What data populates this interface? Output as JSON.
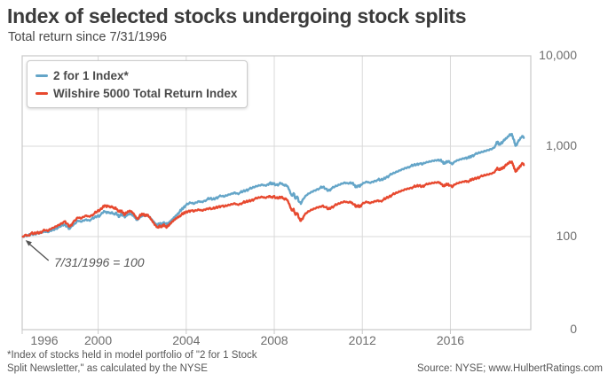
{
  "header": {
    "title": "Index of selected stocks undergoing stock splits",
    "subtitle": "Total return since 7/31/1996"
  },
  "footnote": {
    "line1": "*Index of stocks held in model portfolio of \"2 for 1 Stock",
    "line2": "Split Newsletter,\" as calculated by the NYSE"
  },
  "source": {
    "text": "Source: NYSE; www.HulbertRatings.com"
  },
  "chart_data": {
    "type": "line",
    "title": "Index of selected stocks undergoing stock splits",
    "subtitle": "Total return since 7/31/1996",
    "y_scale": "log",
    "grid": true,
    "legend_position": "top-left",
    "x_domain": [
      1996.55,
      2019.65
    ],
    "xlabel": "",
    "ylabel": "",
    "y_ticks": [
      {
        "label": "10,000",
        "value": 10000
      },
      {
        "label": "1,000",
        "value": 1000
      },
      {
        "label": "100",
        "value": 100
      },
      {
        "label": "0",
        "value": 0
      }
    ],
    "x_ticks": [
      {
        "label": "1996",
        "year": 1996
      },
      {
        "label": "2000",
        "year": 2000
      },
      {
        "label": "2004",
        "year": 2004
      },
      {
        "label": "2008",
        "year": 2008
      },
      {
        "label": "2012",
        "year": 2012
      },
      {
        "label": "2016",
        "year": 2016
      }
    ],
    "annotation": {
      "text": "7/31/1996 = 100",
      "x": 1996.58,
      "y": 100
    },
    "x": [
      1996.58,
      1996.71,
      1996.83,
      1996.96,
      1997.08,
      1997.21,
      1997.33,
      1997.46,
      1997.58,
      1997.71,
      1997.83,
      1997.96,
      1998.08,
      1998.21,
      1998.33,
      1998.46,
      1998.58,
      1998.71,
      1998.83,
      1998.96,
      1999.08,
      1999.21,
      1999.33,
      1999.46,
      1999.58,
      1999.71,
      1999.83,
      1999.96,
      2000.08,
      2000.21,
      2000.29,
      2000.38,
      2000.46,
      2000.54,
      2000.63,
      2000.71,
      2000.79,
      2000.88,
      2000.96,
      2001.04,
      2001.13,
      2001.21,
      2001.29,
      2001.38,
      2001.46,
      2001.54,
      2001.63,
      2001.71,
      2001.79,
      2001.88,
      2001.96,
      2002.04,
      2002.13,
      2002.21,
      2002.29,
      2002.38,
      2002.46,
      2002.54,
      2002.63,
      2002.71,
      2002.79,
      2002.88,
      2002.96,
      2003.04,
      2003.13,
      2003.21,
      2003.29,
      2003.38,
      2003.46,
      2003.54,
      2003.63,
      2003.71,
      2003.79,
      2003.88,
      2003.96,
      2004.08,
      2004.21,
      2004.33,
      2004.46,
      2004.58,
      2004.71,
      2004.83,
      2004.96,
      2005.08,
      2005.21,
      2005.33,
      2005.46,
      2005.58,
      2005.71,
      2005.83,
      2005.96,
      2006.08,
      2006.21,
      2006.33,
      2006.46,
      2006.58,
      2006.71,
      2006.83,
      2006.96,
      2007.08,
      2007.21,
      2007.33,
      2007.46,
      2007.58,
      2007.71,
      2007.79,
      2007.88,
      2007.96,
      2008.08,
      2008.21,
      2008.29,
      2008.38,
      2008.46,
      2008.54,
      2008.63,
      2008.71,
      2008.79,
      2008.88,
      2008.96,
      2009.04,
      2009.13,
      2009.21,
      2009.33,
      2009.46,
      2009.58,
      2009.71,
      2009.83,
      2009.96,
      2010.08,
      2010.21,
      2010.33,
      2010.46,
      2010.58,
      2010.71,
      2010.83,
      2010.96,
      2011.08,
      2011.21,
      2011.33,
      2011.46,
      2011.54,
      2011.63,
      2011.71,
      2011.79,
      2011.88,
      2011.96,
      2012.08,
      2012.21,
      2012.33,
      2012.46,
      2012.58,
      2012.71,
      2012.83,
      2012.96,
      2013.08,
      2013.21,
      2013.33,
      2013.46,
      2013.58,
      2013.71,
      2013.83,
      2013.96,
      2014.08,
      2014.21,
      2014.33,
      2014.46,
      2014.58,
      2014.71,
      2014.83,
      2014.96,
      2015.08,
      2015.21,
      2015.33,
      2015.46,
      2015.54,
      2015.63,
      2015.71,
      2015.79,
      2015.88,
      2015.96,
      2016.08,
      2016.21,
      2016.33,
      2016.46,
      2016.58,
      2016.71,
      2016.79,
      2016.88,
      2016.96,
      2017.08,
      2017.21,
      2017.33,
      2017.46,
      2017.58,
      2017.71,
      2017.83,
      2017.96,
      2018.08,
      2018.13,
      2018.21,
      2018.29,
      2018.38,
      2018.46,
      2018.54,
      2018.63,
      2018.71,
      2018.75,
      2018.79,
      2018.83,
      2018.88,
      2018.92,
      2018.96,
      2019.04,
      2019.13,
      2019.21,
      2019.29,
      2019.33
    ],
    "series": [
      {
        "name": "2 for 1 Index*",
        "color": "#64a5c8",
        "values": [
          100,
          104,
          102,
          107,
          106,
          109,
          108,
          111,
          113,
          112,
          116,
          119,
          123,
          127,
          132,
          136,
          130,
          122,
          131,
          139,
          150,
          146,
          151,
          155,
          152,
          157,
          162,
          169,
          170,
          182,
          190,
          182,
          187,
          181,
          186,
          178,
          182,
          173,
          165,
          180,
          172,
          163,
          170,
          176,
          179,
          175,
          169,
          159,
          153,
          163,
          169,
          174,
          168,
          172,
          167,
          160,
          152,
          145,
          138,
          134,
          140,
          135,
          143,
          140,
          136,
          141,
          148,
          156,
          164,
          172,
          181,
          190,
          199,
          209,
          219,
          228,
          236,
          230,
          238,
          246,
          242,
          250,
          258,
          264,
          258,
          266,
          274,
          280,
          276,
          284,
          292,
          300,
          308,
          300,
          308,
          316,
          324,
          332,
          340,
          350,
          360,
          368,
          376,
          368,
          380,
          390,
          380,
          388,
          372,
          380,
          386,
          376,
          366,
          372,
          352,
          318,
          285,
          302,
          262,
          278,
          242,
          230,
          262,
          286,
          300,
          314,
          324,
          336,
          344,
          354,
          338,
          322,
          336,
          350,
          362,
          374,
          386,
          396,
          390,
          398,
          390,
          372,
          352,
          366,
          356,
          374,
          392,
          404,
          394,
          404,
          416,
          426,
          420,
          434,
          452,
          470,
          488,
          505,
          522,
          540,
          558,
          576,
          590,
          604,
          616,
          628,
          640,
          626,
          648,
          664,
          676,
          690,
          700,
          710,
          698,
          672,
          640,
          668,
          682,
          660,
          630,
          676,
          700,
          718,
          736,
          750,
          742,
          758,
          775,
          800,
          822,
          842,
          862,
          884,
          906,
          930,
          958,
          1060,
          1120,
          1040,
          1080,
          1120,
          1165,
          1215,
          1280,
          1360,
          1320,
          1370,
          1280,
          1180,
          1080,
          1010,
          1080,
          1160,
          1240,
          1290,
          1235
        ]
      },
      {
        "name": "Wilshire 5000 Total Return Index",
        "color": "#e7492f",
        "values": [
          100,
          105,
          103,
          109,
          107,
          111,
          110,
          114,
          117,
          115,
          121,
          125,
          130,
          135,
          141,
          147,
          139,
          129,
          140,
          150,
          162,
          158,
          165,
          171,
          167,
          173,
          180,
          190,
          196,
          212,
          222,
          212,
          218,
          210,
          216,
          205,
          210,
          198,
          188,
          193,
          184,
          174,
          182,
          188,
          191,
          186,
          177,
          165,
          157,
          168,
          174,
          178,
          171,
          175,
          167,
          157,
          148,
          139,
          131,
          126,
          133,
          127,
          135,
          131,
          127,
          132,
          139,
          146,
          153,
          159,
          165,
          170,
          175,
          180,
          185,
          190,
          194,
          189,
          194,
          198,
          194,
          199,
          204,
          208,
          203,
          208,
          213,
          217,
          213,
          218,
          223,
          228,
          233,
          226,
          232,
          237,
          242,
          247,
          252,
          258,
          264,
          269,
          274,
          268,
          276,
          282,
          274,
          279,
          266,
          270,
          274,
          265,
          257,
          261,
          244,
          219,
          195,
          203,
          174,
          182,
          159,
          149,
          167,
          181,
          190,
          198,
          204,
          211,
          215,
          221,
          211,
          201,
          209,
          217,
          224,
          231,
          238,
          244,
          239,
          243,
          237,
          226,
          213,
          221,
          214,
          224,
          234,
          241,
          234,
          240,
          247,
          252,
          248,
          256,
          266,
          276,
          286,
          295,
          304,
          314,
          324,
          334,
          341,
          348,
          354,
          361,
          367,
          358,
          369,
          378,
          384,
          391,
          396,
          401,
          393,
          378,
          360,
          375,
          382,
          369,
          352,
          376,
          388,
          397,
          406,
          413,
          408,
          416,
          424,
          436,
          447,
          456,
          465,
          475,
          485,
          496,
          509,
          552,
          578,
          545,
          560,
          576,
          595,
          615,
          640,
          672,
          655,
          675,
          638,
          598,
          555,
          522,
          552,
          588,
          620,
          642,
          618
        ]
      }
    ]
  }
}
